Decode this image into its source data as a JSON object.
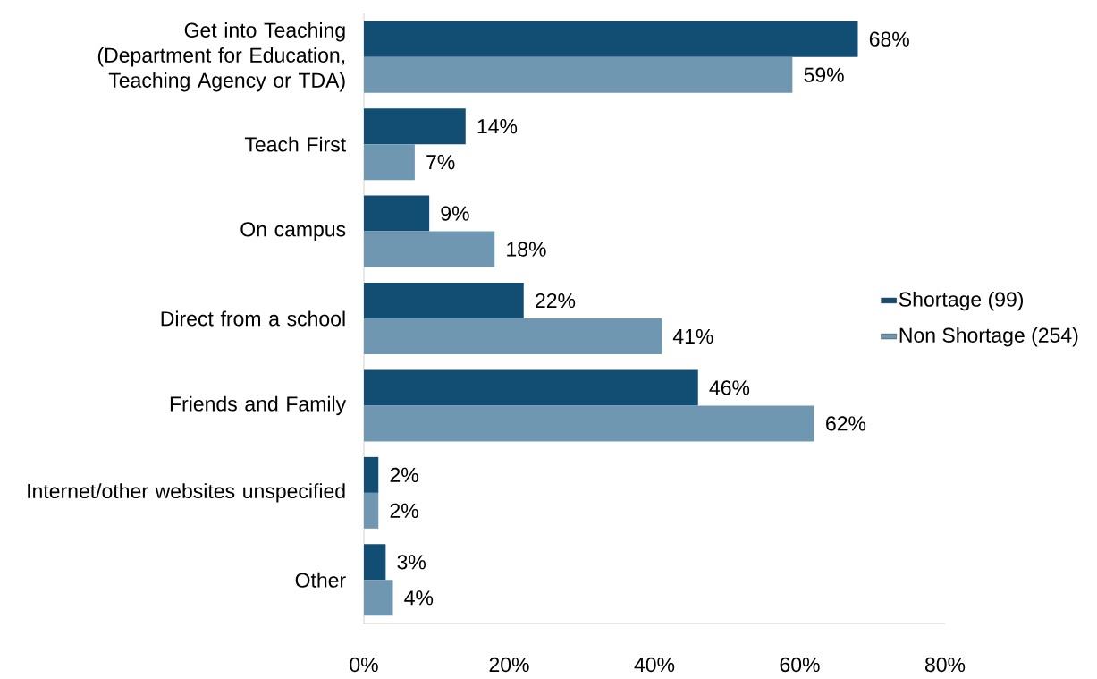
{
  "chart_data": {
    "type": "bar",
    "orientation": "horizontal",
    "categories": [
      "Get into Teaching (Department for Education, Teaching Agency or TDA)",
      "Teach First",
      "On campus",
      "Direct from a school",
      "Friends and Family",
      "Internet/other websites unspecified",
      "Other"
    ],
    "series": [
      {
        "name": "Shortage (99)",
        "color": "#124e73",
        "values": [
          68,
          14,
          9,
          22,
          46,
          2,
          3
        ],
        "value_labels": [
          "68%",
          "14%",
          "9%",
          "22%",
          "46%",
          "2%",
          "3%"
        ]
      },
      {
        "name": "Non Shortage (254)",
        "color": "#7097b1",
        "values": [
          59,
          7,
          18,
          41,
          62,
          2,
          4
        ],
        "value_labels": [
          "59%",
          "7%",
          "18%",
          "41%",
          "62%",
          "2%",
          "4%"
        ]
      }
    ],
    "xlim": [
      0,
      80
    ],
    "xticks": [
      {
        "value": 0,
        "label": "0%"
      },
      {
        "value": 20,
        "label": "20%"
      },
      {
        "value": 40,
        "label": "40%"
      },
      {
        "value": 60,
        "label": "60%"
      },
      {
        "value": 80,
        "label": "80%"
      }
    ],
    "legend": "right",
    "grid": false
  }
}
